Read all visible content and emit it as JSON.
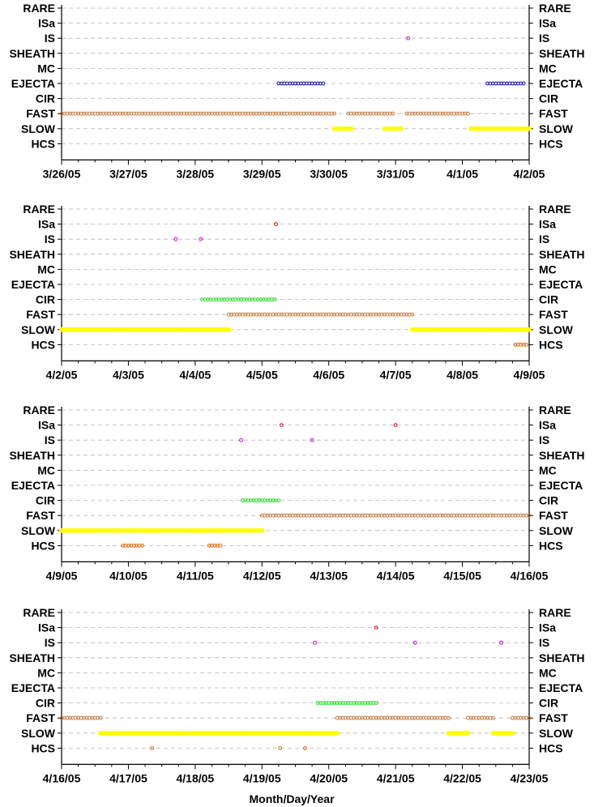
{
  "chart_data": [
    {
      "type": "scatter",
      "title": "",
      "xlabel": "",
      "ylabel": "",
      "categories": [
        "RARE",
        "ISa",
        "IS",
        "SHEATH",
        "MC",
        "EJECTA",
        "CIR",
        "FAST",
        "SLOW",
        "HCS"
      ],
      "x_ticks": [
        "3/26/05",
        "3/27/05",
        "3/28/05",
        "3/29/05",
        "3/30/05",
        "3/31/05",
        "4/1/05",
        "4/2/05"
      ],
      "xlim": [
        "3/26/05",
        "4/2/05"
      ],
      "grid": "horizontal dashed",
      "series": [
        {
          "category": "IS",
          "color": "#cc00cc",
          "intervals": [
            [
              "3/31/05 04:30",
              "3/31/05 04:30"
            ]
          ]
        },
        {
          "category": "EJECTA",
          "color": "#1a1aa0",
          "intervals": [
            [
              "3/29/05 06:00",
              "3/29/05 22:00"
            ],
            [
              "4/1/05 09:00",
              "4/1/05 22:30"
            ]
          ]
        },
        {
          "category": "FAST",
          "color": "#c87838",
          "intervals": [
            [
              "3/26/05 00:00",
              "3/30/05 02:00"
            ],
            [
              "3/30/05 07:00",
              "3/30/05 23:00"
            ],
            [
              "3/31/05 04:00",
              "4/1/05 02:30"
            ]
          ]
        },
        {
          "category": "SLOW",
          "color": "#ffff00",
          "intervals": [
            [
              "3/30/05 02:00",
              "3/30/05 08:30"
            ],
            [
              "3/30/05 20:00",
              "3/31/05 02:00"
            ],
            [
              "4/1/05 03:00",
              "4/2/05 02:00"
            ]
          ]
        }
      ]
    },
    {
      "type": "scatter",
      "title": "",
      "xlabel": "",
      "ylabel": "",
      "categories": [
        "RARE",
        "ISa",
        "IS",
        "SHEATH",
        "MC",
        "EJECTA",
        "CIR",
        "FAST",
        "SLOW",
        "HCS"
      ],
      "x_ticks": [
        "4/2/05",
        "4/3/05",
        "4/4/05",
        "4/5/05",
        "4/6/05",
        "4/7/05",
        "4/8/05",
        "4/9/05"
      ],
      "xlim": [
        "4/2/05",
        "4/9/05"
      ],
      "grid": "horizontal dashed",
      "series": [
        {
          "category": "ISa",
          "color": "#cc1111",
          "intervals": [
            [
              "4/5/05 05:00",
              "4/5/05 05:00"
            ]
          ]
        },
        {
          "category": "IS",
          "color": "#cc00cc",
          "intervals": [
            [
              "4/3/05 17:00",
              "4/3/05 17:00"
            ],
            [
              "4/4/05 02:00",
              "4/4/05 02:00"
            ]
          ]
        },
        {
          "category": "CIR",
          "color": "#22dd22",
          "intervals": [
            [
              "4/4/05 02:30",
              "4/5/05 05:00"
            ]
          ]
        },
        {
          "category": "FAST",
          "color": "#c87838",
          "intervals": [
            [
              "4/4/05 12:00",
              "4/7/05 06:00"
            ]
          ]
        },
        {
          "category": "SLOW",
          "color": "#ffff00",
          "intervals": [
            [
              "4/2/05 00:00",
              "4/4/05 12:00"
            ],
            [
              "4/7/05 06:00",
              "4/9/05 02:00"
            ]
          ]
        },
        {
          "category": "HCS",
          "color": "#dd6600",
          "intervals": [
            [
              "4/8/05 19:00",
              "4/8/05 23:00"
            ]
          ]
        }
      ]
    },
    {
      "type": "scatter",
      "title": "",
      "xlabel": "",
      "ylabel": "",
      "categories": [
        "RARE",
        "ISa",
        "IS",
        "SHEATH",
        "MC",
        "EJECTA",
        "CIR",
        "FAST",
        "SLOW",
        "HCS"
      ],
      "x_ticks": [
        "4/9/05",
        "4/10/05",
        "4/11/05",
        "4/12/05",
        "4/13/05",
        "4/14/05",
        "4/15/05",
        "4/16/05"
      ],
      "xlim": [
        "4/9/05",
        "4/16/05"
      ],
      "grid": "horizontal dashed",
      "series": [
        {
          "category": "ISa",
          "color": "#cc1111",
          "intervals": [
            [
              "4/12/05 07:00",
              "4/12/05 07:00"
            ],
            [
              "4/14/05 00:00",
              "4/14/05 00:00"
            ]
          ]
        },
        {
          "category": "IS",
          "color": "#cc00cc",
          "intervals": [
            [
              "4/11/05 16:30",
              "4/11/05 16:30"
            ],
            [
              "4/12/05 18:00",
              "4/12/05 18:00"
            ]
          ]
        },
        {
          "category": "CIR",
          "color": "#22dd22",
          "intervals": [
            [
              "4/11/05 17:00",
              "4/12/05 06:30"
            ]
          ]
        },
        {
          "category": "FAST",
          "color": "#c87838",
          "intervals": [
            [
              "4/12/05 00:00",
              "4/16/05 02:00"
            ]
          ]
        },
        {
          "category": "SLOW",
          "color": "#ffff00",
          "intervals": [
            [
              "4/9/05 00:00",
              "4/12/05 00:00"
            ]
          ]
        },
        {
          "category": "HCS",
          "color": "#dd6600",
          "intervals": [
            [
              "4/9/05 22:00",
              "4/10/05 05:00"
            ],
            [
              "4/11/05 05:00",
              "4/11/05 09:00"
            ]
          ]
        }
      ]
    },
    {
      "type": "scatter",
      "title": "",
      "xlabel": "Month/Day/Year",
      "ylabel": "",
      "categories": [
        "RARE",
        "ISa",
        "IS",
        "SHEATH",
        "MC",
        "EJECTA",
        "CIR",
        "FAST",
        "SLOW",
        "HCS"
      ],
      "x_ticks": [
        "4/16/05",
        "4/17/05",
        "4/18/05",
        "4/19/05",
        "4/20/05",
        "4/21/05",
        "4/22/05",
        "4/23/05"
      ],
      "xlim": [
        "4/16/05",
        "4/23/05"
      ],
      "grid": "horizontal dashed",
      "series": [
        {
          "category": "ISa",
          "color": "#cc1111",
          "intervals": [
            [
              "4/20/05 17:00",
              "4/20/05 17:00"
            ]
          ]
        },
        {
          "category": "IS",
          "color": "#cc00cc",
          "intervals": [
            [
              "4/19/05 19:00",
              "4/19/05 19:00"
            ],
            [
              "4/21/05 07:00",
              "4/21/05 07:00"
            ],
            [
              "4/22/05 14:00",
              "4/22/05 14:00"
            ]
          ]
        },
        {
          "category": "CIR",
          "color": "#22dd22",
          "intervals": [
            [
              "4/19/05 20:00",
              "4/20/05 17:00"
            ]
          ]
        },
        {
          "category": "FAST",
          "color": "#c87838",
          "intervals": [
            [
              "4/16/05 00:00",
              "4/16/05 14:00"
            ],
            [
              "4/20/05 03:00",
              "4/21/05 19:00"
            ],
            [
              "4/22/05 02:00",
              "4/22/05 11:00"
            ],
            [
              "4/22/05 18:00",
              "4/23/05 02:00"
            ]
          ]
        },
        {
          "category": "SLOW",
          "color": "#ffff00",
          "intervals": [
            [
              "4/16/05 14:00",
              "4/20/05 03:00"
            ],
            [
              "4/21/05 19:00",
              "4/22/05 02:00"
            ],
            [
              "4/22/05 11:00",
              "4/22/05 18:00"
            ]
          ]
        },
        {
          "category": "HCS",
          "color": "#dd6600",
          "intervals": [
            [
              "4/17/05 08:30",
              "4/17/05 08:30"
            ],
            [
              "4/19/05 06:30",
              "4/19/05 06:30"
            ],
            [
              "4/19/05 15:30",
              "4/19/05 15:30"
            ]
          ]
        }
      ]
    }
  ]
}
